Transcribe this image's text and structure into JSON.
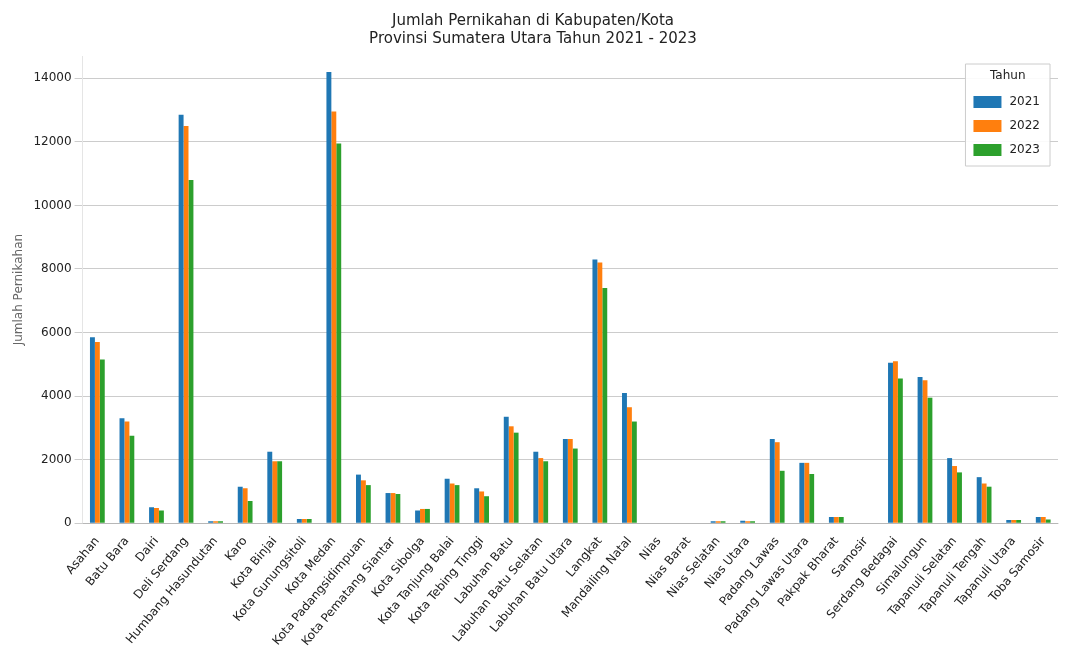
{
  "chart_data": {
    "type": "bar",
    "title": "Jumlah Pernikahan di Kabupaten/Kota\nProvinsi Sumatera Utara Tahun 2021 - 2023",
    "ylabel": "Jumlah Pernikahan",
    "legend_title": "Tahun",
    "legend": "top right",
    "grid": "y",
    "ylim": [
      0,
      14700
    ],
    "yticks": [
      0,
      2000,
      4000,
      6000,
      8000,
      10000,
      12000,
      14000
    ],
    "categories": [
      "Asahan",
      "Batu Bara",
      "Dairi",
      "Deli Serdang",
      "Humbang Hasundutan",
      "Karo",
      "Kota Binjai",
      "Kota Gunungsitoli",
      "Kota Medan",
      "Kota Padangsidimpuan",
      "Kota Pematang Siantar",
      "Kota Sibolga",
      "Kota Tanjung Balai",
      "Kota Tebing Tinggi",
      "Labuhan Batu",
      "Labuhan Batu Selatan",
      "Labuhan Batu Utara",
      "Langkat",
      "Mandailing Natal",
      "Nias",
      "Nias Barat",
      "Nias Selatan",
      "Nias Utara",
      "Padang Lawas",
      "Padang Lawas Utara",
      "Pakpak Bharat",
      "Samosir",
      "Serdang Bedagai",
      "Simalungun",
      "Tapanuli Selatan",
      "Tapanuli Tengah",
      "Tapanuli Utara",
      "Toba Samosir"
    ],
    "series": [
      {
        "name": "2021",
        "color": "#1f77b4",
        "values": [
          5850,
          3300,
          500,
          12850,
          60,
          1150,
          2250,
          130,
          14200,
          1530,
          950,
          400,
          1400,
          1100,
          3350,
          2250,
          2650,
          8300,
          4100,
          0,
          0,
          60,
          80,
          2650,
          1900,
          200,
          0,
          5050,
          4600,
          2050,
          1450,
          100,
          200
        ]
      },
      {
        "name": "2022",
        "color": "#ff7f0e",
        "values": [
          5700,
          3200,
          480,
          12500,
          60,
          1100,
          1950,
          130,
          12950,
          1350,
          950,
          450,
          1250,
          1000,
          3050,
          2050,
          2650,
          8200,
          3650,
          0,
          0,
          60,
          60,
          2550,
          1900,
          200,
          0,
          5100,
          4500,
          1800,
          1250,
          100,
          200
        ]
      },
      {
        "name": "2023",
        "color": "#2ca02c",
        "values": [
          5150,
          2750,
          400,
          10800,
          60,
          700,
          1950,
          130,
          11950,
          1200,
          920,
          450,
          1200,
          850,
          2850,
          1950,
          2350,
          7400,
          3200,
          0,
          0,
          60,
          60,
          1650,
          1550,
          200,
          0,
          4550,
          3950,
          1600,
          1150,
          100,
          120
        ]
      }
    ]
  }
}
